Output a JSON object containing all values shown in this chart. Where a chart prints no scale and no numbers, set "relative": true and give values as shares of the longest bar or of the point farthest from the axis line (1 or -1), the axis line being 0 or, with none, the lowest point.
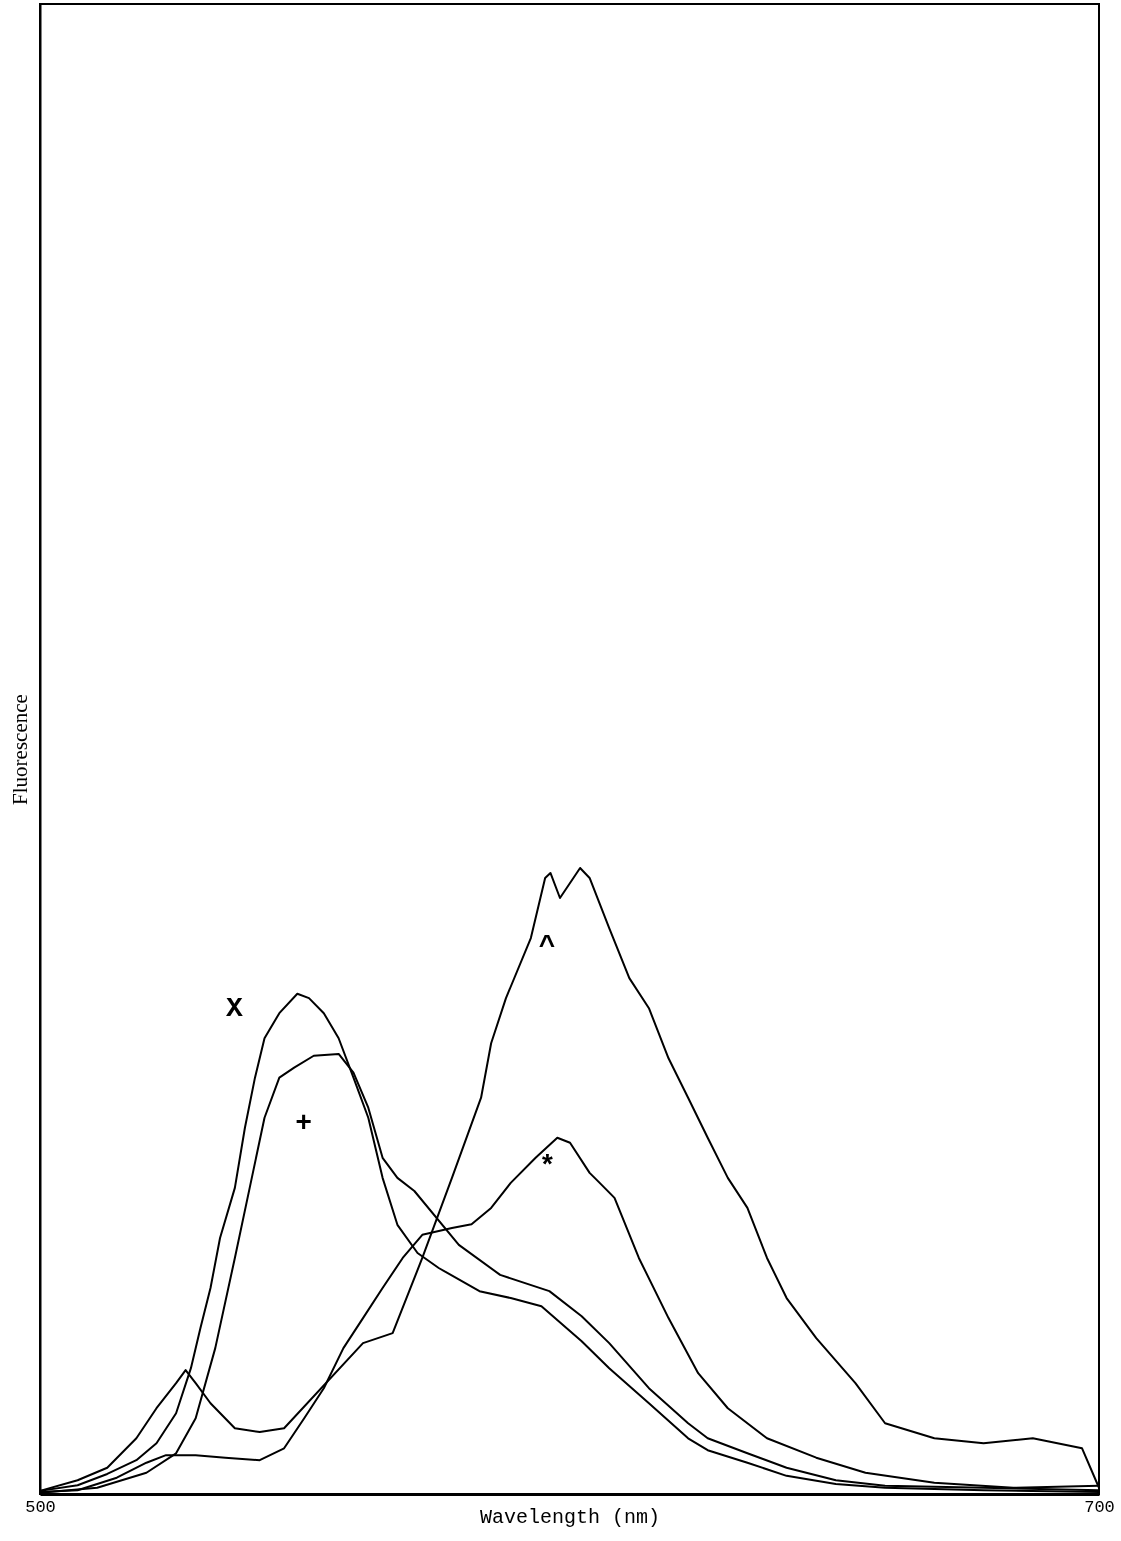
{
  "chart_data": {
    "type": "line",
    "xlabel": "Wavelength (nm)",
    "ylabel": "Fluorescence",
    "relative": true,
    "xlim": [
      500,
      700
    ],
    "xticks": [
      500,
      700
    ],
    "grid": false,
    "marker": "none",
    "line_style": "solid",
    "series": [
      {
        "name": "X",
        "color": "#000000",
        "x": [
          500,
          507.1,
          512.7,
          518.2,
          522.0,
          525.7,
          528.5,
          530.3,
          532.2,
          534.0,
          536.8,
          538.7,
          540.6,
          542.4,
          545.2,
          548.6,
          550.8,
          553.6,
          556.4,
          559.2,
          562.0,
          564.7,
          567.5,
          571.3,
          575.3,
          583.0,
          588.9,
          594.7,
          602.3,
          607.5,
          615.0,
          622.4,
          626.1,
          633.6,
          641.0,
          650.3,
          659.6,
          678.2,
          700
        ],
        "values": [
          0.005,
          0.014,
          0.032,
          0.054,
          0.081,
          0.129,
          0.201,
          0.265,
          0.329,
          0.409,
          0.489,
          0.585,
          0.665,
          0.728,
          0.768,
          0.799,
          0.792,
          0.768,
          0.728,
          0.665,
          0.601,
          0.505,
          0.43,
          0.385,
          0.361,
          0.324,
          0.313,
          0.3,
          0.244,
          0.201,
          0.145,
          0.089,
          0.07,
          0.05,
          0.029,
          0.016,
          0.01,
          0.006,
          0.003
        ]
      },
      {
        "name": "+",
        "color": "#000000",
        "x": [
          500,
          510.8,
          520.1,
          525.7,
          529.4,
          533.1,
          536.8,
          539.6,
          542.4,
          545.2,
          548.0,
          551.7,
          556.4,
          559.2,
          562.0,
          564.7,
          567.5,
          570.7,
          579.1,
          586.9,
          596.2,
          602.3,
          607.5,
          615.0,
          622.4,
          626.1,
          633.6,
          641.0,
          650.3,
          659.6,
          678.2,
          700
        ],
        "values": [
          0.002,
          0.01,
          0.034,
          0.065,
          0.121,
          0.233,
          0.377,
          0.489,
          0.601,
          0.665,
          0.681,
          0.7,
          0.703,
          0.673,
          0.617,
          0.537,
          0.505,
          0.484,
          0.398,
          0.35,
          0.324,
          0.284,
          0.241,
          0.169,
          0.113,
          0.089,
          0.065,
          0.042,
          0.022,
          0.013,
          0.01,
          0.006
        ]
      },
      {
        "name": "*",
        "color": "#000000",
        "x": [
          500,
          507.1,
          514.5,
          520.1,
          523.8,
          529.4,
          535.0,
          541.5,
          546.1,
          549.9,
          553.6,
          557.3,
          561.0,
          564.7,
          568.5,
          572.2,
          577.8,
          581.5,
          585.2,
          588.9,
          593.6,
          597.7,
          600.1,
          603.8,
          605.7,
          608.5,
          613.1,
          618.7,
          624.3,
          629.9,
          637.3,
          646.6,
          655.9,
          668.9,
          683.8,
          700
        ],
        "values": [
          0.003,
          0.006,
          0.026,
          0.05,
          0.062,
          0.062,
          0.058,
          0.054,
          0.073,
          0.121,
          0.169,
          0.233,
          0.281,
          0.329,
          0.377,
          0.414,
          0.425,
          0.431,
          0.457,
          0.497,
          0.537,
          0.569,
          0.561,
          0.513,
          0.497,
          0.473,
          0.377,
          0.281,
          0.193,
          0.137,
          0.089,
          0.058,
          0.034,
          0.018,
          0.01,
          0.013
        ]
      },
      {
        "name": "^",
        "color": "#000000",
        "x": [
          500,
          507.1,
          512.7,
          518.2,
          522.0,
          525.7,
          527.5,
          529.4,
          532.2,
          536.8,
          541.5,
          546.1,
          561.0,
          566.6,
          572.2,
          577.8,
          583.3,
          585.2,
          588.0,
          592.7,
          595.4,
          596.4,
          598.2,
          602.0,
          603.8,
          607.5,
          611.3,
          615.0,
          618.7,
          622.4,
          626.1,
          629.9,
          633.6,
          637.3,
          641.0,
          646.6,
          654.0,
          659.6,
          668.9,
          678.2,
          687.5,
          696.8,
          700
        ],
        "values": [
          0.005,
          0.022,
          0.042,
          0.089,
          0.137,
          0.177,
          0.198,
          0.177,
          0.145,
          0.105,
          0.099,
          0.105,
          0.241,
          0.257,
          0.377,
          0.505,
          0.633,
          0.72,
          0.792,
          0.888,
          0.984,
          0.992,
          0.952,
          1.0,
          0.984,
          0.904,
          0.824,
          0.776,
          0.696,
          0.633,
          0.569,
          0.505,
          0.457,
          0.377,
          0.313,
          0.249,
          0.177,
          0.113,
          0.089,
          0.081,
          0.089,
          0.073,
          0.01
        ]
      }
    ]
  }
}
